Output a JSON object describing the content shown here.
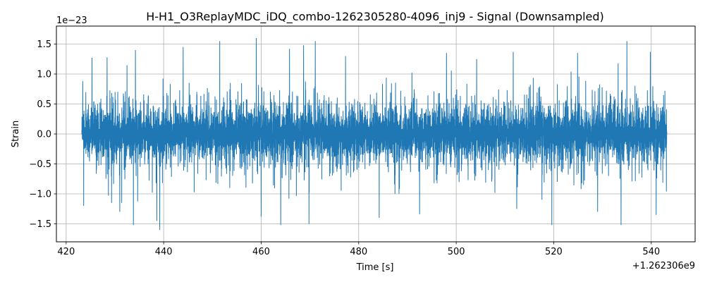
{
  "chart_data": {
    "type": "line",
    "title": "H-H1_O3ReplayMDC_iDQ_combo-1262305280-4096_inj9 - Signal (Downsampled)",
    "xlabel": "Time [s]",
    "ylabel": "Strain",
    "x_offset_label": "+1.262306e9",
    "y_exponent_label": "1e−23",
    "xlim": [
      418.0,
      549.0
    ],
    "ylim": [
      -1.8,
      1.8
    ],
    "x_ticks": [
      420,
      440,
      460,
      480,
      500,
      520,
      540
    ],
    "x_tick_labels": [
      "420",
      "440",
      "460",
      "480",
      "500",
      "520",
      "540"
    ],
    "y_ticks": [
      -1.5,
      -1.0,
      -0.5,
      0.0,
      0.5,
      1.0,
      1.5
    ],
    "y_tick_labels": [
      "−1.5",
      "−1.0",
      "−0.5",
      "0.0",
      "0.5",
      "1.0",
      "1.5"
    ],
    "grid": true,
    "series": [
      {
        "color": "#1f77b4",
        "x_start": 423.2,
        "x_end": 543.2,
        "typical_amplitude": 0.55,
        "peaks": [
          [
            423.4,
            0.88
          ],
          [
            423.6,
            -1.2
          ],
          [
            425.3,
            1.27
          ],
          [
            428.4,
            1.28
          ],
          [
            431.0,
            -1.3
          ],
          [
            433.8,
            -1.52
          ],
          [
            434.2,
            1.4
          ],
          [
            438.6,
            -1.45
          ],
          [
            439.2,
            -1.6
          ],
          [
            444.0,
            1.45
          ],
          [
            451.5,
            1.55
          ],
          [
            459.0,
            1.6
          ],
          [
            460.0,
            -1.38
          ],
          [
            464.0,
            -1.52
          ],
          [
            465.8,
            1.42
          ],
          [
            468.7,
            1.48
          ],
          [
            469.8,
            -1.5
          ],
          [
            471.1,
            1.55
          ],
          [
            477.3,
            1.3
          ],
          [
            484.2,
            -1.4
          ],
          [
            492.5,
            -1.34
          ],
          [
            498.0,
            1.35
          ],
          [
            504.2,
            1.25
          ],
          [
            511.7,
            1.37
          ],
          [
            512.4,
            -1.25
          ],
          [
            519.6,
            -1.52
          ],
          [
            524.9,
            1.35
          ],
          [
            529.0,
            -1.3
          ],
          [
            533.2,
            1.18
          ],
          [
            533.8,
            -1.52
          ],
          [
            535.0,
            1.55
          ],
          [
            539.8,
            1.37
          ],
          [
            541.0,
            -1.35
          ],
          [
            542.8,
            0.72
          ],
          [
            543.1,
            -0.96
          ]
        ]
      }
    ]
  }
}
